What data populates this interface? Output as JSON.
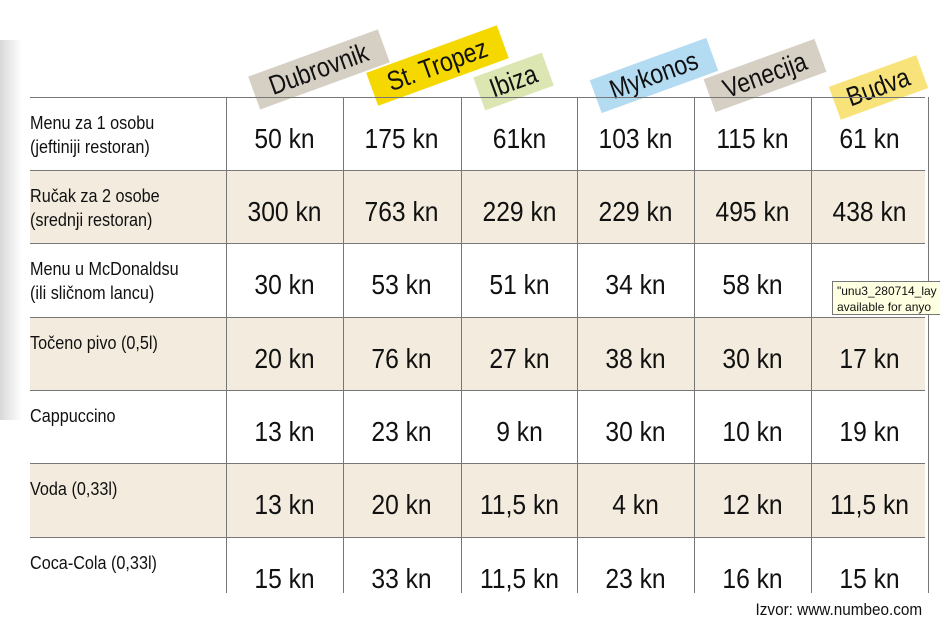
{
  "columns": [
    {
      "name": "Dubrovnik",
      "color": "#d6cfc3"
    },
    {
      "name": "St. Tropez",
      "color": "#f5d800"
    },
    {
      "name": "Ibiza",
      "color": "#dbe6b3"
    },
    {
      "name": "Mykonos",
      "color": "#b3dbf2"
    },
    {
      "name": "Venecija",
      "color": "#d6cfc3"
    },
    {
      "name": "Budva",
      "color": "#f8e37a"
    }
  ],
  "row_shade": "#f3ecde",
  "rows": [
    {
      "label1": "Menu za 1 osobu",
      "label2": "(jeftiniji restoran)",
      "values": [
        "50 kn",
        "175 kn",
        "61kn",
        "103 kn",
        "115 kn",
        "61 kn"
      ]
    },
    {
      "label1": "Ručak za 2 osobe",
      "label2": "(srednji restoran)",
      "values": [
        "300 kn",
        "763 kn",
        "229 kn",
        "229 kn",
        "495 kn",
        "438 kn"
      ]
    },
    {
      "label1": "Menu u McDonaldsu",
      "label2": "(ili sličnom lancu)",
      "values": [
        "30 kn",
        "53 kn",
        "51 kn",
        "34 kn",
        "58 kn",
        ""
      ]
    },
    {
      "label1": "Točeno pivo (0,5l)",
      "label2": "",
      "values": [
        "20 kn",
        "76 kn",
        "27 kn",
        "38 kn",
        "30 kn",
        "17 kn"
      ]
    },
    {
      "label1": "Cappuccino",
      "label2": "",
      "values": [
        "13 kn",
        "23 kn",
        "9 kn",
        "30 kn",
        "10 kn",
        "19 kn"
      ]
    },
    {
      "label1": "Voda (0,33l)",
      "label2": "",
      "values": [
        "13 kn",
        "20 kn",
        "11,5 kn",
        "4 kn",
        "12 kn",
        "11,5 kn"
      ]
    },
    {
      "label1": "Coca-Cola (0,33l)",
      "label2": "",
      "values": [
        "15 kn",
        "33 kn",
        "11,5 kn",
        "23 kn",
        "16 kn",
        "15 kn"
      ]
    }
  ],
  "tooltip": {
    "line1": "\"unu3_280714_lay",
    "line2": "available for anyo"
  },
  "source": "Izvor: www.numbeo.com"
}
